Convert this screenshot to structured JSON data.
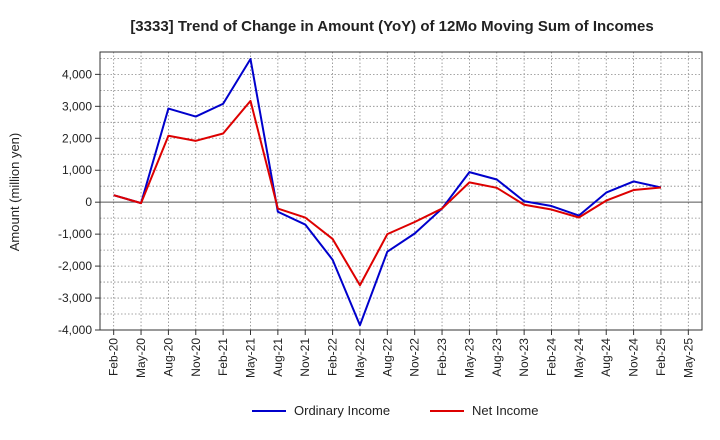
{
  "chart_data": {
    "type": "line",
    "title": "[3333]  Trend of Change in Amount (YoY) of 12Mo Moving Sum of Incomes",
    "xlabel": "",
    "ylabel": "Amount (million yen)",
    "ylim": [
      -4000,
      4700
    ],
    "yticks": [
      -4000,
      -3000,
      -2000,
      -1000,
      0,
      1000,
      2000,
      3000,
      4000
    ],
    "ytick_labels": [
      "-4,000",
      "-3,000",
      "-2,000",
      "-1,000",
      "0",
      "1,000",
      "2,000",
      "3,000",
      "4,000"
    ],
    "categories": [
      "Feb-20",
      "May-20",
      "Aug-20",
      "Nov-20",
      "Feb-21",
      "May-21",
      "Aug-21",
      "Nov-21",
      "Feb-22",
      "May-22",
      "Aug-22",
      "Nov-22",
      "Feb-23",
      "May-23",
      "Aug-23",
      "Nov-23",
      "Feb-24",
      "May-24",
      "Aug-24",
      "Nov-24",
      "Feb-25",
      "May-25"
    ],
    "grid": true,
    "legend_position": "bottom",
    "series": [
      {
        "name": "Ordinary Income",
        "color": "#0000cc",
        "values": [
          220,
          -30,
          2930,
          2680,
          3080,
          4480,
          -300,
          -700,
          -1800,
          -3850,
          -1550,
          -980,
          -200,
          940,
          710,
          30,
          -120,
          -420,
          300,
          650,
          460,
          null
        ]
      },
      {
        "name": "Net Income",
        "color": "#dd0000",
        "values": [
          220,
          -30,
          2080,
          1920,
          2150,
          3170,
          -200,
          -480,
          -1150,
          -2600,
          -1000,
          -620,
          -200,
          620,
          450,
          -80,
          -230,
          -480,
          50,
          380,
          460,
          null
        ]
      }
    ]
  }
}
